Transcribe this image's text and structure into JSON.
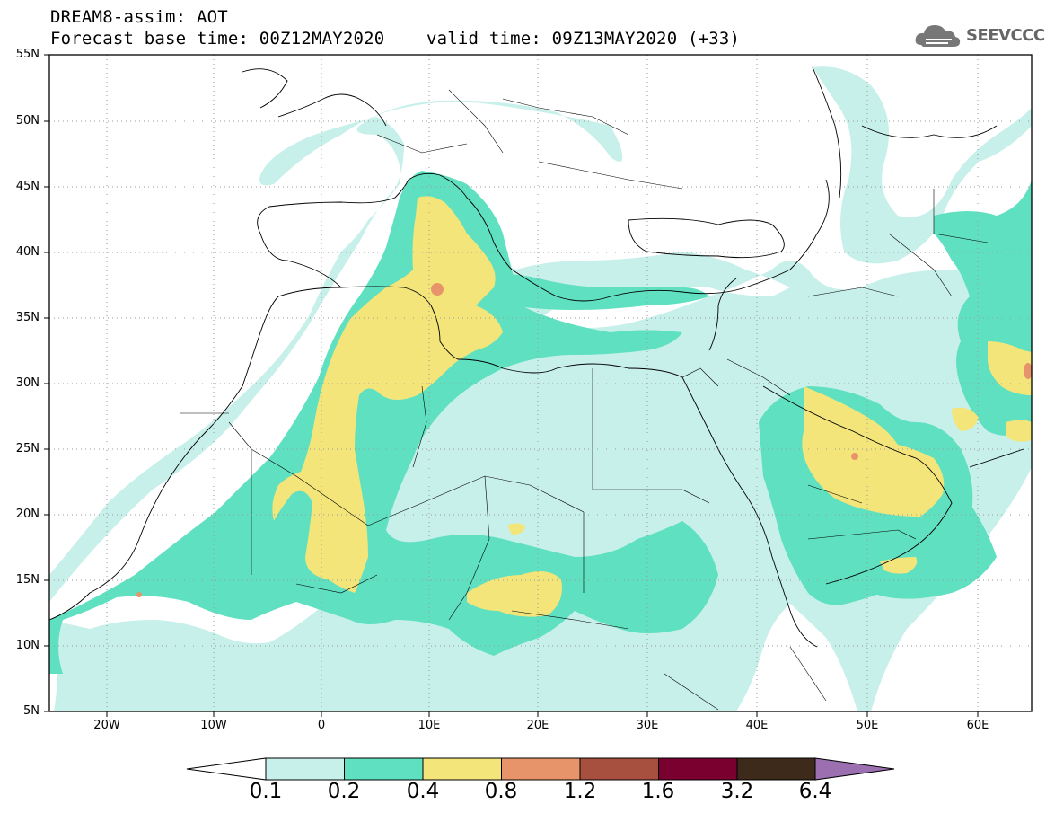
{
  "header": {
    "line1": "DREAM8-assim: AOT",
    "line2": "Forecast base time: 00Z12MAY2020    valid time: 09Z13MAY2020 (+33)"
  },
  "logo": {
    "text": "SEEVCCC",
    "icon": "cloud-icon"
  },
  "map": {
    "lat_labels": [
      "55N",
      "50N",
      "45N",
      "40N",
      "35N",
      "30N",
      "25N",
      "20N",
      "15N",
      "10N",
      "5N"
    ],
    "lon_labels": [
      "20W",
      "10W",
      "0",
      "10E",
      "20E",
      "30E",
      "40E",
      "50E",
      "60E"
    ],
    "gridlines": true,
    "colors": {
      "c01": "#c7f0ea",
      "c02": "#5fe0c0",
      "c04": "#f3e57a",
      "c08": "#e8946a",
      "c12": "#a8503f"
    }
  },
  "colorbar": {
    "labels": [
      "0.1",
      "0.2",
      "0.4",
      "0.8",
      "1.2",
      "1.6",
      "3.2",
      "6.4"
    ],
    "colors": [
      "#c7f0ea",
      "#5fe0c0",
      "#f3e57a",
      "#e8946a",
      "#a8503f",
      "#7a0030",
      "#3d2a1a",
      "#9b6fb0"
    ]
  }
}
